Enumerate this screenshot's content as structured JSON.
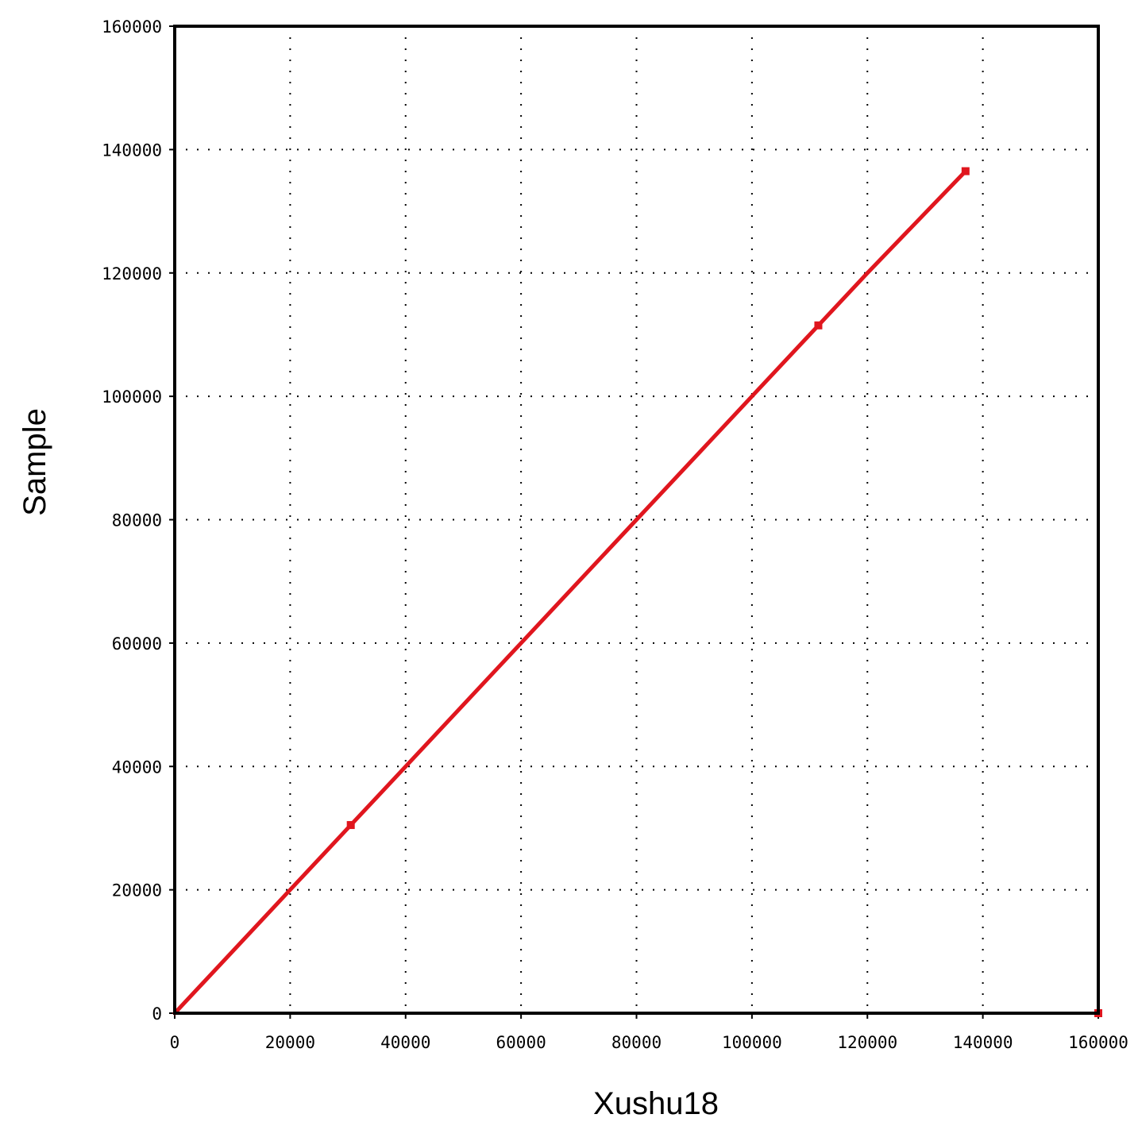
{
  "chart_data": {
    "type": "line",
    "title": "",
    "xlabel": "Xushu18",
    "ylabel": "Sample",
    "xlim": [
      0,
      160000
    ],
    "ylim": [
      0,
      160000
    ],
    "x_ticks": [
      "0",
      "20000",
      "40000",
      "60000",
      "80000",
      "100000",
      "120000",
      "140000",
      "160000"
    ],
    "y_ticks": [
      "0",
      "20000",
      "40000",
      "60000",
      "80000",
      "100000",
      "120000",
      "140000",
      "160000"
    ],
    "grid": true,
    "legend": "none",
    "series": [
      {
        "x": [
          0,
          20000,
          30500,
          40000,
          60000,
          80000,
          100000,
          111500,
          120000,
          137000
        ],
        "y": [
          0,
          20000,
          30500,
          40000,
          60000,
          80000,
          100000,
          111500,
          120000,
          136500
        ],
        "color": "#e0161e"
      }
    ],
    "markers": [
      {
        "x": 30500,
        "y": 30500
      },
      {
        "x": 111500,
        "y": 111500
      },
      {
        "x": 137000,
        "y": 136500
      },
      {
        "x": 160000,
        "y": 0
      }
    ]
  }
}
